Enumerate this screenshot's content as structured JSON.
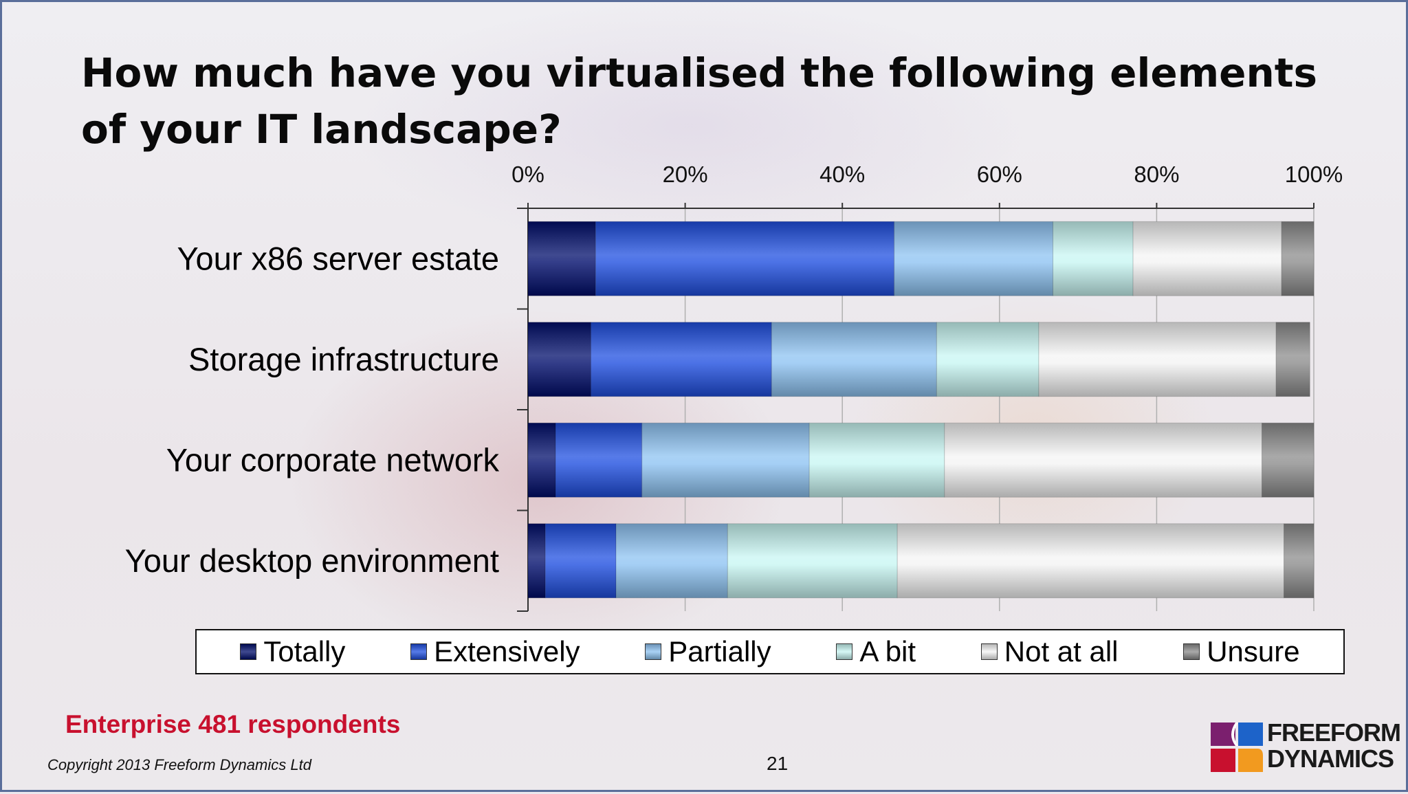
{
  "slide": {
    "title": "How much have you virtualised the following elements of your IT landscape?",
    "respondents": "Enterprise 481 respondents",
    "copyright": "Copyright 2013 Freeform Dynamics Ltd",
    "page_number": "21",
    "logo": {
      "line1": "FREEFORM",
      "line2": "DYNAMICS"
    }
  },
  "chart_data": {
    "type": "bar",
    "orientation": "horizontal",
    "stacked": "100%",
    "title": "How much have you virtualised the following elements of your IT landscape?",
    "categories": [
      "Your x86 server estate",
      "Storage infrastructure",
      "Your corporate network",
      "Your desktop environment"
    ],
    "series": [
      {
        "name": "Totally",
        "color": "#000d6b",
        "values": [
          8.6,
          8,
          3.5,
          2.2
        ]
      },
      {
        "name": "Extensively",
        "color": "#1f4fe0",
        "values": [
          38,
          23,
          11,
          9
        ]
      },
      {
        "name": "Partially",
        "color": "#8ec3f2",
        "values": [
          20.2,
          21,
          21.3,
          14.2
        ]
      },
      {
        "name": "A bit",
        "color": "#c8f6f3",
        "values": [
          10.2,
          13,
          17.2,
          21.6
        ]
      },
      {
        "name": "Not at all",
        "color": "#f4f4f4",
        "values": [
          18.9,
          30.2,
          40.4,
          49.2
        ]
      },
      {
        "name": "Unsure",
        "color": "#8c8c8c",
        "values": [
          4.1,
          4.3,
          6.6,
          3.8
        ]
      }
    ],
    "xlim": [
      0,
      100
    ],
    "xticks": [
      "0%",
      "20%",
      "40%",
      "60%",
      "80%",
      "100%"
    ],
    "xaxis_position": "top",
    "grid": true,
    "legend_position": "bottom"
  }
}
